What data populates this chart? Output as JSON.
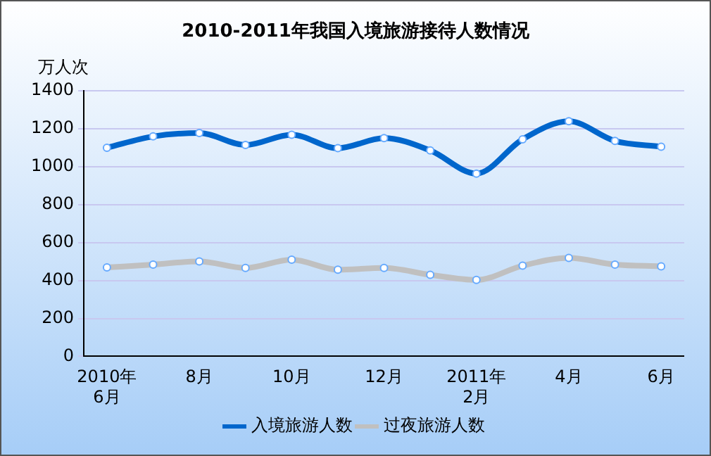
{
  "chart_data": {
    "type": "line",
    "title": "2010-2011年我国入境旅游接待人数情况",
    "ylabel": "万人次",
    "categories": [
      "2010年\n6月",
      null,
      "8月",
      null,
      "10月",
      null,
      "12月",
      null,
      "2011年\n2月",
      null,
      "4月",
      null,
      "6月"
    ],
    "series": [
      {
        "name": "入境旅游人数",
        "color": "#0066cc",
        "values": [
          1100,
          1160,
          1178,
          1115,
          1169,
          1098,
          1151,
          1086,
          964,
          1145,
          1240,
          1136,
          1106
        ]
      },
      {
        "name": "过夜旅游人数",
        "color": "#c0c0c0",
        "values": [
          469,
          484,
          501,
          466,
          510,
          457,
          466,
          430,
          403,
          478,
          519,
          484,
          475
        ]
      }
    ],
    "ylim": [
      0,
      1400
    ],
    "yticks": [
      0,
      200,
      400,
      600,
      800,
      1000,
      1200,
      1400
    ],
    "grid": "y",
    "legend": "bottom",
    "marker": "circle",
    "line_style": "solid"
  }
}
